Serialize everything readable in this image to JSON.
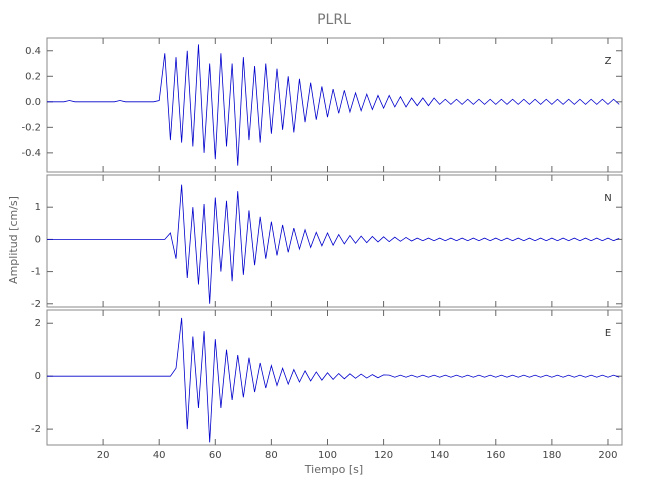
{
  "chart_data": [
    {
      "type": "line",
      "title": "PLRL",
      "label": "Z",
      "x": [
        0,
        2,
        4,
        6,
        8,
        10,
        12,
        14,
        16,
        18,
        20,
        22,
        24,
        26,
        28,
        30,
        32,
        34,
        36,
        38,
        40,
        42,
        44,
        46,
        48,
        50,
        52,
        54,
        56,
        58,
        60,
        62,
        64,
        66,
        68,
        70,
        72,
        74,
        76,
        78,
        80,
        82,
        84,
        86,
        88,
        90,
        92,
        94,
        96,
        98,
        100,
        102,
        104,
        106,
        108,
        110,
        112,
        114,
        116,
        118,
        120,
        122,
        124,
        126,
        128,
        130,
        132,
        134,
        136,
        138,
        140,
        142,
        144,
        146,
        148,
        150,
        152,
        154,
        156,
        158,
        160,
        162,
        164,
        166,
        168,
        170,
        172,
        174,
        176,
        178,
        180,
        182,
        184,
        186,
        188,
        190,
        192,
        194,
        196,
        198,
        200,
        202,
        204
      ],
      "series": [
        {
          "color": "#0000cc",
          "values": [
            0,
            0,
            0,
            0,
            0.01,
            0,
            0,
            0,
            0,
            0,
            0,
            0,
            0,
            0.01,
            0,
            0,
            0,
            0,
            0,
            0,
            0.01,
            0.38,
            -0.3,
            0.35,
            -0.32,
            0.4,
            -0.35,
            0.45,
            -0.4,
            0.3,
            -0.45,
            0.38,
            -0.35,
            0.3,
            -0.5,
            0.35,
            -0.3,
            0.28,
            -0.32,
            0.3,
            -0.25,
            0.26,
            -0.22,
            0.2,
            -0.24,
            0.18,
            -0.16,
            0.15,
            -0.14,
            0.12,
            -0.12,
            0.1,
            -0.09,
            0.09,
            -0.08,
            0.07,
            -0.07,
            0.06,
            -0.06,
            0.05,
            -0.05,
            0.05,
            -0.04,
            0.04,
            -0.04,
            0.03,
            -0.03,
            0.03,
            -0.03,
            0.03,
            -0.02,
            0.02,
            -0.02,
            0.02,
            -0.02,
            0.02,
            -0.02,
            0.02,
            -0.02,
            0.02,
            -0.02,
            0.02,
            -0.02,
            0.02,
            -0.02,
            0.02,
            -0.02,
            0.02,
            -0.02,
            0.02,
            -0.02,
            0.02,
            -0.02,
            0.02,
            -0.02,
            0.02,
            -0.02,
            0.02,
            -0.02,
            0.02,
            -0.02,
            0.02,
            -0.02
          ]
        }
      ],
      "xlim": [
        0,
        205
      ],
      "ylim": [
        -0.55,
        0.5
      ],
      "yticks": [
        0.4,
        0.2,
        {
          "value": 0,
          "label": "0.0"
        },
        -0.2,
        -0.4
      ]
    },
    {
      "type": "line",
      "label": "N",
      "ylabel": "Amplitud [cm/s]",
      "x": [
        0,
        2,
        4,
        6,
        8,
        10,
        12,
        14,
        16,
        18,
        20,
        22,
        24,
        26,
        28,
        30,
        32,
        34,
        36,
        38,
        40,
        42,
        44,
        46,
        48,
        50,
        52,
        54,
        56,
        58,
        60,
        62,
        64,
        66,
        68,
        70,
        72,
        74,
        76,
        78,
        80,
        82,
        84,
        86,
        88,
        90,
        92,
        94,
        96,
        98,
        100,
        102,
        104,
        106,
        108,
        110,
        112,
        114,
        116,
        118,
        120,
        122,
        124,
        126,
        128,
        130,
        132,
        134,
        136,
        138,
        140,
        142,
        144,
        146,
        148,
        150,
        152,
        154,
        156,
        158,
        160,
        162,
        164,
        166,
        168,
        170,
        172,
        174,
        176,
        178,
        180,
        182,
        184,
        186,
        188,
        190,
        192,
        194,
        196,
        198,
        200,
        202,
        204
      ],
      "series": [
        {
          "color": "#0000cc",
          "values": [
            0,
            0,
            0,
            0,
            0,
            0,
            0,
            0,
            0,
            0,
            0,
            0,
            0,
            0,
            0,
            0,
            0,
            0,
            0,
            0,
            0,
            0,
            0.2,
            -0.6,
            1.7,
            -1.2,
            1.0,
            -1.4,
            1.1,
            -2.0,
            1.3,
            -1.0,
            1.2,
            -1.3,
            1.5,
            -1.1,
            0.9,
            -0.8,
            0.7,
            -0.6,
            0.55,
            -0.5,
            0.45,
            -0.4,
            0.35,
            -0.3,
            0.3,
            -0.25,
            0.22,
            -0.2,
            0.2,
            -0.18,
            0.15,
            -0.14,
            0.12,
            -0.12,
            0.1,
            -0.1,
            0.09,
            -0.08,
            0.08,
            -0.07,
            0.07,
            -0.06,
            0.06,
            -0.05,
            0.04,
            -0.04,
            0.04,
            -0.04,
            0.04,
            -0.04,
            0.04,
            -0.04,
            0.04,
            -0.04,
            0.04,
            -0.04,
            0.04,
            -0.04,
            0.04,
            -0.04,
            0.04,
            -0.04,
            0.04,
            -0.04,
            0.04,
            -0.04,
            0.04,
            -0.04,
            0.04,
            -0.04,
            0.04,
            -0.04,
            0.04,
            -0.04,
            0.04,
            -0.04,
            0.04,
            -0.04,
            0.04,
            -0.04,
            0.03
          ]
        }
      ],
      "xlim": [
        0,
        205
      ],
      "ylim": [
        -2.1,
        2.0
      ],
      "yticks": [
        1,
        0,
        -1,
        -2
      ]
    },
    {
      "type": "line",
      "label": "E",
      "xlabel": "Tiempo [s]",
      "x": [
        0,
        2,
        4,
        6,
        8,
        10,
        12,
        14,
        16,
        18,
        20,
        22,
        24,
        26,
        28,
        30,
        32,
        34,
        36,
        38,
        40,
        42,
        44,
        46,
        48,
        50,
        52,
        54,
        56,
        58,
        60,
        62,
        64,
        66,
        68,
        70,
        72,
        74,
        76,
        78,
        80,
        82,
        84,
        86,
        88,
        90,
        92,
        94,
        96,
        98,
        100,
        102,
        104,
        106,
        108,
        110,
        112,
        114,
        116,
        118,
        120,
        122,
        124,
        126,
        128,
        130,
        132,
        134,
        136,
        138,
        140,
        142,
        144,
        146,
        148,
        150,
        152,
        154,
        156,
        158,
        160,
        162,
        164,
        166,
        168,
        170,
        172,
        174,
        176,
        178,
        180,
        182,
        184,
        186,
        188,
        190,
        192,
        194,
        196,
        198,
        200,
        202,
        204
      ],
      "series": [
        {
          "color": "#0000cc",
          "values": [
            0,
            0,
            0,
            0,
            0,
            0,
            0,
            0,
            0,
            0,
            0,
            0,
            0,
            0,
            0,
            0,
            0,
            0,
            0,
            0,
            0,
            0,
            0,
            0.3,
            2.2,
            -2.0,
            1.5,
            -1.2,
            1.7,
            -2.5,
            1.4,
            -1.2,
            1.0,
            -0.9,
            0.8,
            -0.8,
            0.7,
            -0.6,
            0.5,
            -0.45,
            0.4,
            -0.35,
            0.3,
            -0.3,
            0.25,
            -0.22,
            0.2,
            -0.18,
            0.16,
            -0.15,
            0.13,
            -0.12,
            0.1,
            -0.1,
            0.09,
            -0.08,
            0.08,
            -0.07,
            0.06,
            -0.06,
            0.05,
            0.04,
            -0.04,
            0.04,
            -0.04,
            0.04,
            -0.04,
            0.04,
            -0.04,
            0.04,
            -0.04,
            0.04,
            -0.04,
            0.04,
            -0.04,
            0.04,
            -0.04,
            0.04,
            -0.04,
            0.04,
            -0.04,
            0.04,
            -0.04,
            0.04,
            -0.04,
            0.04,
            -0.04,
            0.04,
            -0.04,
            0.04,
            -0.04,
            0.04,
            -0.04,
            0.04,
            -0.04,
            0.04,
            -0.04,
            0.04,
            -0.04,
            0.04,
            -0.04,
            0.04,
            -0.04
          ]
        }
      ],
      "xlim": [
        0,
        205
      ],
      "ylim": [
        -2.6,
        2.5
      ],
      "yticks": [
        2,
        0,
        -2
      ],
      "xticks": [
        20,
        40,
        60,
        80,
        100,
        120,
        140,
        160,
        180,
        200
      ]
    }
  ]
}
